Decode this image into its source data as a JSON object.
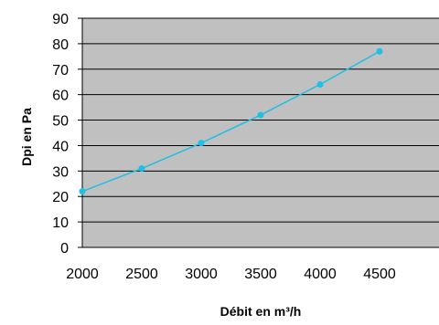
{
  "chart_data": {
    "type": "line",
    "xlabel": "Débit en m³/h",
    "ylabel": "Dpi en Pa",
    "x_ticks": [
      "2000",
      "2500",
      "3000",
      "3500",
      "4000",
      "4500"
    ],
    "y_ticks": [
      "0",
      "10",
      "20",
      "30",
      "40",
      "50",
      "60",
      "70",
      "80",
      "90"
    ],
    "xlim": [
      2000,
      5000
    ],
    "ylim": [
      0,
      90
    ],
    "grid": "horizontal",
    "legend": "none",
    "series": [
      {
        "x": [
          2000,
          2500,
          3000,
          3500,
          4000,
          4500
        ],
        "values": [
          22,
          31,
          41,
          52,
          64,
          77
        ],
        "color": "#1fbfe6"
      }
    ],
    "colors": {
      "plot_background": "#c0c0c0",
      "gridline": "#000000"
    }
  }
}
